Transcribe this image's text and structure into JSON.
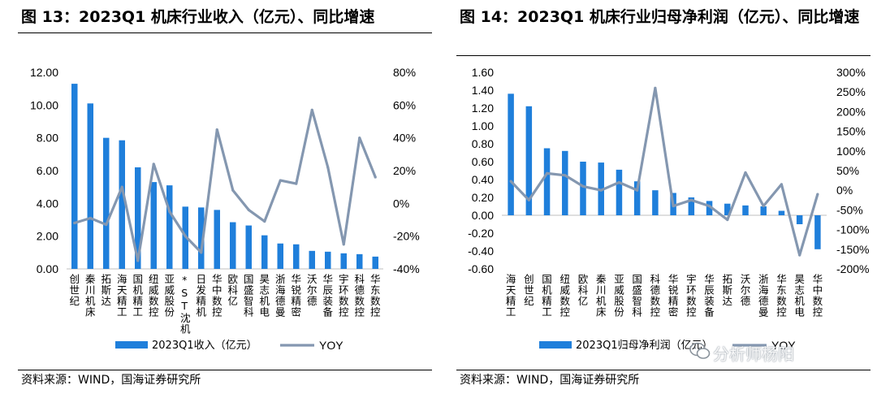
{
  "source_text": "资料来源：WIND，国海证券研究所",
  "watermark": "分析师杨阳",
  "chart_data": [
    {
      "type": "bar",
      "title": "图 13：2023Q1 机床行业收入（亿元）、同比增速",
      "xlabel": "",
      "ylabel": "",
      "categories": [
        "创世纪",
        "秦川机床",
        "拓斯达",
        "海天精工",
        "国机精工",
        "纽威数控",
        "亚威股份",
        "*ST沈机",
        "日发精机",
        "华中数控",
        "欧科亿",
        "国盛智科",
        "昊志机电",
        "浙海德曼",
        "华锐精密",
        "沃尔德",
        "华辰装备",
        "宇环数控",
        "科德数控",
        "华东数控"
      ],
      "series": [
        {
          "name": "2023Q1收入（亿元）",
          "axis": "left",
          "kind": "bar",
          "values": [
            11.3,
            10.1,
            8.0,
            7.85,
            6.2,
            5.3,
            5.1,
            3.8,
            3.75,
            3.6,
            2.85,
            2.65,
            2.05,
            1.55,
            1.5,
            1.1,
            1.05,
            0.95,
            0.9,
            0.75
          ]
        },
        {
          "name": "YOY",
          "axis": "right",
          "kind": "line",
          "values": [
            -12,
            -9,
            -13,
            10,
            -35,
            24,
            -5,
            -20,
            -30,
            45,
            8,
            -4,
            -11,
            14,
            12,
            57,
            22,
            -25,
            40,
            16
          ]
        }
      ],
      "ylim": [
        0,
        12
      ],
      "yticks": [
        "0.00",
        "2.00",
        "4.00",
        "6.00",
        "8.00",
        "10.00",
        "12.00"
      ],
      "y2lim": [
        -40,
        80
      ],
      "y2ticks": [
        "-40%",
        "-20%",
        "0%",
        "20%",
        "40%",
        "60%",
        "80%"
      ],
      "legend": "bottom",
      "grid": false,
      "colors": {
        "bar": "#1f7fdb",
        "line": "#8497b0"
      }
    },
    {
      "type": "bar",
      "title": "图 14：2023Q1 机床行业归母净利润（亿元）、同比增速",
      "xlabel": "",
      "ylabel": "",
      "categories": [
        "海天精工",
        "创世纪",
        "国机精工",
        "纽威数控",
        "欧科亿",
        "秦川机床",
        "亚威股份",
        "国盛智科",
        "科德数控",
        "华锐精密",
        "宇环数控",
        "华辰装备",
        "拓斯达",
        "沃尔德",
        "浙海德曼",
        "华东数控",
        "昊志机电",
        "华中数控"
      ],
      "series": [
        {
          "name": "2023Q1归母净利润（亿元）",
          "axis": "left",
          "kind": "bar",
          "values": [
            1.36,
            1.22,
            0.75,
            0.72,
            0.6,
            0.59,
            0.51,
            0.38,
            0.28,
            0.25,
            0.2,
            0.16,
            0.13,
            0.11,
            0.1,
            0.05,
            -0.1,
            -0.38
          ]
        },
        {
          "name": "YOY",
          "axis": "right",
          "kind": "line",
          "values": [
            23,
            -25,
            43,
            38,
            10,
            0,
            20,
            0,
            260,
            -40,
            -25,
            -40,
            -75,
            45,
            -40,
            15,
            -165,
            -10
          ]
        }
      ],
      "ylim": [
        -0.6,
        1.6
      ],
      "yticks": [
        "-0.60",
        "-0.40",
        "-0.20",
        "0.00",
        "0.20",
        "0.40",
        "0.60",
        "0.80",
        "1.00",
        "1.20",
        "1.40",
        "1.60"
      ],
      "y2lim": [
        -200,
        300
      ],
      "y2ticks": [
        "-200%",
        "-150%",
        "-100%",
        "-50%",
        "0%",
        "50%",
        "100%",
        "150%",
        "200%",
        "250%",
        "300%"
      ],
      "legend": "bottom",
      "grid": false,
      "colors": {
        "bar": "#1f7fdb",
        "line": "#8497b0"
      }
    }
  ]
}
